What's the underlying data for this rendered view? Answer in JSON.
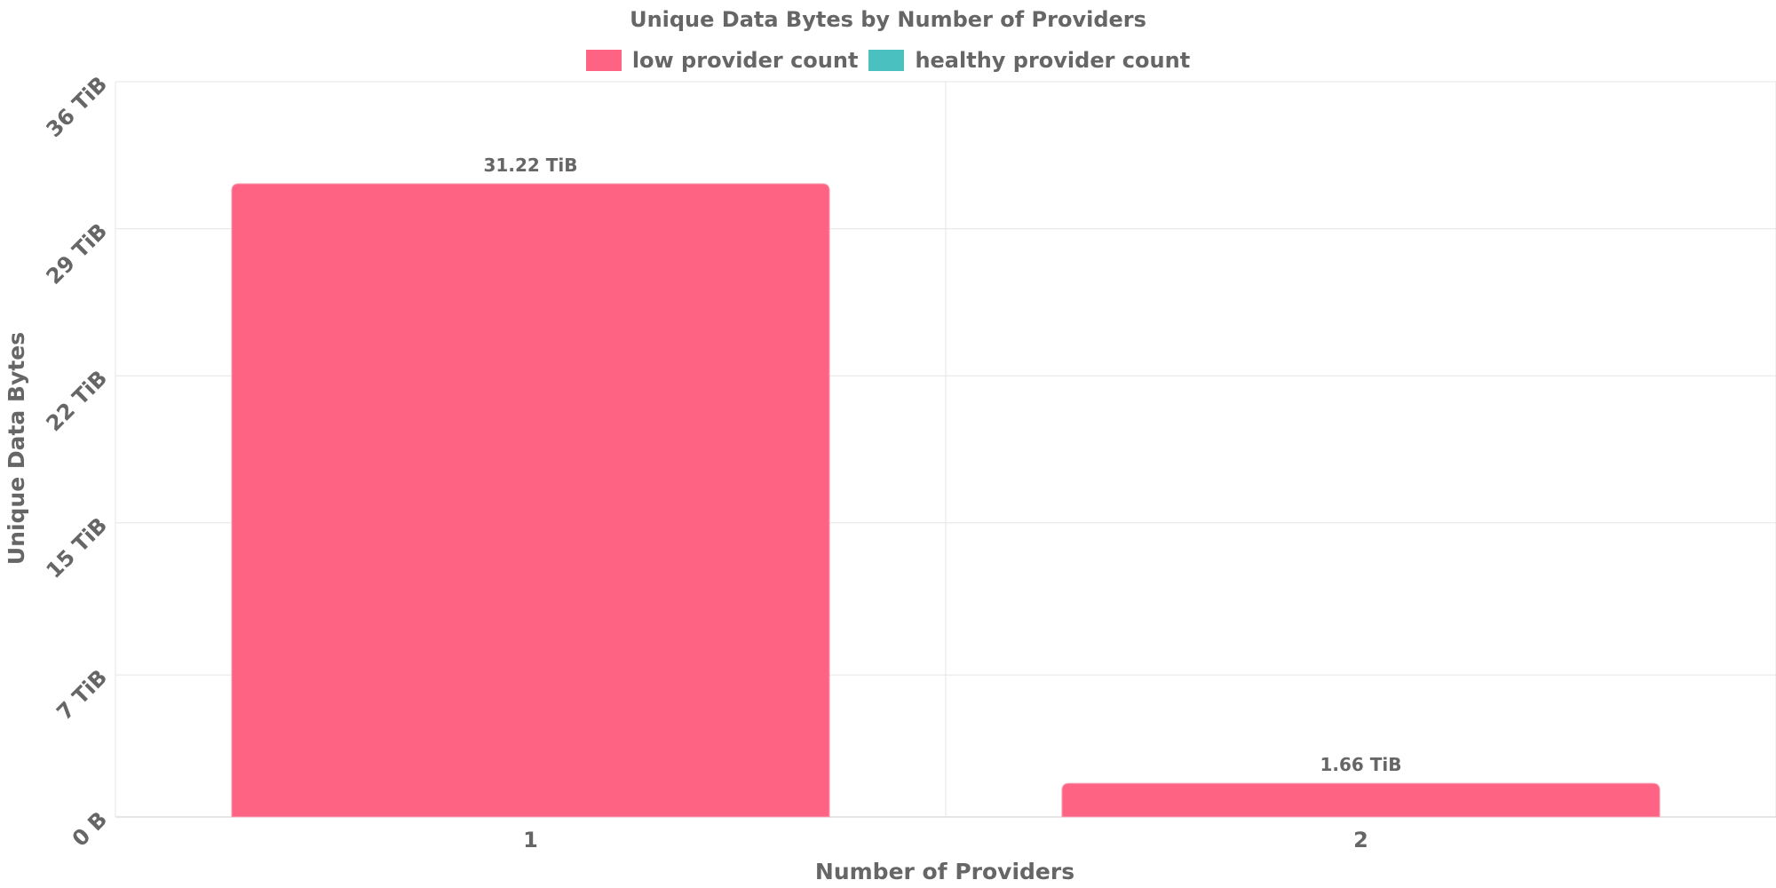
{
  "chart_data": {
    "type": "bar",
    "title": "Unique Data Bytes by Number of Providers",
    "xlabel": "Number of Providers",
    "ylabel": "Unique Data Bytes",
    "categories": [
      "1",
      "2"
    ],
    "series": [
      {
        "name": "low provider count",
        "color": "#ff6384",
        "values": [
          31.22,
          1.66
        ],
        "labels": [
          "31.22 TiB",
          "1.66 TiB"
        ]
      },
      {
        "name": "healthy provider count",
        "color": "#4bc0c0",
        "values": [
          0,
          0
        ]
      }
    ],
    "y_unit": "TiB",
    "ylim": [
      0,
      36
    ],
    "yticks": [
      {
        "value": 0,
        "label": "0 B"
      },
      {
        "value": 7,
        "label": "7 TiB"
      },
      {
        "value": 14.5,
        "label": "15 TiB"
      },
      {
        "value": 21.75,
        "label": "22 TiB"
      },
      {
        "value": 29,
        "label": "29 TiB"
      },
      {
        "value": 36.25,
        "label": "36 TiB"
      }
    ],
    "grid": true,
    "legend_position": "top-center"
  }
}
